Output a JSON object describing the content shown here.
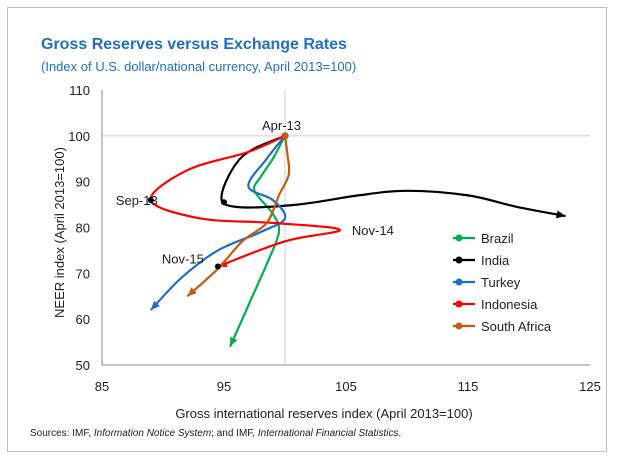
{
  "chart_data": {
    "type": "line",
    "title": "Gross Reserves versus Exchange Rates",
    "subtitle": "(Index of U.S. dollar/national currency, April 2013=100)",
    "xlabel": "Gross international reserves index (April 2013=100)",
    "ylabel": "NEER index (April 2013=100)",
    "xlim": [
      85,
      125
    ],
    "ylim": [
      50,
      110
    ],
    "xticks": [
      85,
      95,
      105,
      115,
      125
    ],
    "yticks": [
      50,
      60,
      70,
      80,
      90,
      100,
      110
    ],
    "legend_position": "right",
    "series": [
      {
        "name": "Brazil",
        "color": "#00b050",
        "points": [
          [
            100,
            100
          ],
          [
            99,
            95
          ],
          [
            98,
            91
          ],
          [
            97.5,
            88
          ],
          [
            99,
            83
          ],
          [
            99.5,
            79
          ],
          [
            98.5,
            72
          ],
          [
            97.5,
            66
          ],
          [
            96.5,
            60
          ],
          [
            95.5,
            54
          ]
        ]
      },
      {
        "name": "India",
        "color": "#000000",
        "points": [
          [
            100,
            100
          ],
          [
            96.5,
            95.5
          ],
          [
            94.8,
            87
          ],
          [
            96,
            84.5
          ],
          [
            101,
            85
          ],
          [
            106,
            87
          ],
          [
            110,
            88
          ],
          [
            115,
            87
          ],
          [
            119,
            84.5
          ],
          [
            123,
            82.5
          ]
        ]
      },
      {
        "name": "Turkey",
        "color": "#1f6fc5",
        "points": [
          [
            100,
            100
          ],
          [
            98.5,
            95
          ],
          [
            97,
            89
          ],
          [
            99,
            86
          ],
          [
            100,
            82
          ],
          [
            98,
            79
          ],
          [
            94.5,
            75
          ],
          [
            91.5,
            69
          ],
          [
            89,
            62
          ]
        ]
      },
      {
        "name": "Indonesia",
        "color": "#ff0000",
        "points": [
          [
            100,
            100
          ],
          [
            97,
            96.5
          ],
          [
            92,
            92.5
          ],
          [
            89,
            86
          ],
          [
            93,
            82
          ],
          [
            99,
            81
          ],
          [
            104.5,
            79.5
          ],
          [
            100,
            77
          ],
          [
            94.5,
            71.5
          ]
        ]
      },
      {
        "name": "South Africa",
        "color": "#c55a11",
        "points": [
          [
            100,
            100
          ],
          [
            100.2,
            96
          ],
          [
            100.3,
            91.5
          ],
          [
            99.5,
            87
          ],
          [
            98.5,
            81
          ],
          [
            96.5,
            77
          ],
          [
            94.5,
            71
          ],
          [
            92,
            65
          ]
        ]
      }
    ],
    "annotations": [
      {
        "text": "Apr-13",
        "x": 100,
        "y": 100
      },
      {
        "text": "Sep-13",
        "x": 89,
        "y": 86
      },
      {
        "text": "Nov-14",
        "x": 104.5,
        "y": 79.5
      },
      {
        "text": "Nov-15",
        "x": 94.5,
        "y": 71.5
      }
    ]
  },
  "source_text": {
    "prefix": "Sources: IMF, ",
    "italic1": "Information Notice System",
    "middle": "; and IMF, ",
    "italic2": "International Financial Statistics",
    "suffix": "."
  }
}
